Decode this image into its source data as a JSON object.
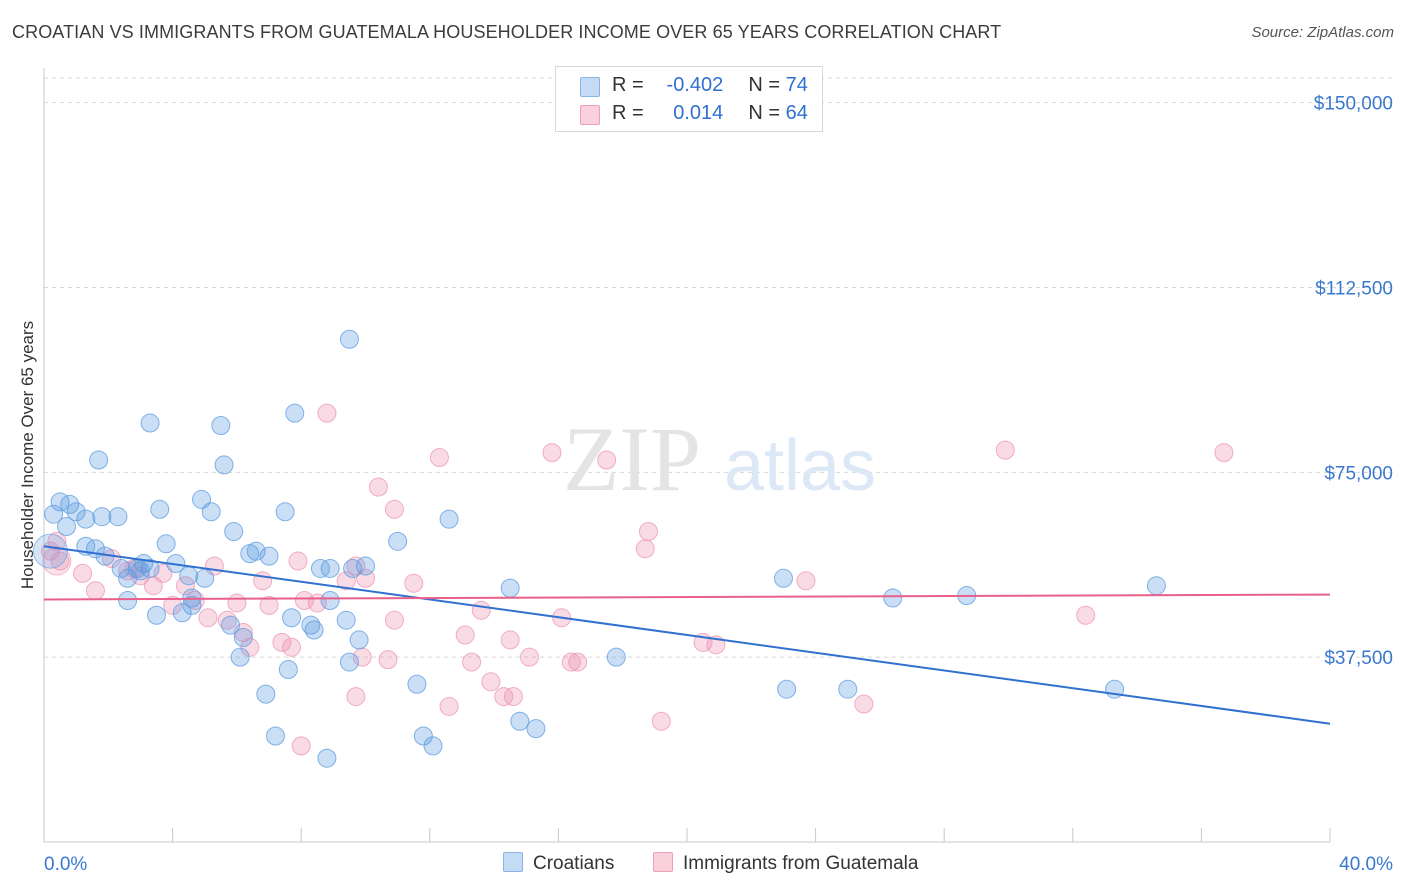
{
  "title": "CROATIAN VS IMMIGRANTS FROM GUATEMALA HOUSEHOLDER INCOME OVER 65 YEARS CORRELATION CHART",
  "source": "Source: ZipAtlas.com",
  "watermark": {
    "zip": "ZIP",
    "atlas": "atlas"
  },
  "legend": {
    "rows": [
      {
        "r_label": "R =",
        "r_value": "-0.402",
        "n_label": "N =",
        "n_value": "74",
        "color": "#a8c8f0"
      },
      {
        "r_label": "R =",
        "r_value": "0.014",
        "n_label": "N =",
        "n_value": "64",
        "color": "#f5b8cc"
      }
    ]
  },
  "bottom_legend": {
    "series1": "Croatians",
    "series2": "Immigrants from Guatemala"
  },
  "chart_data": {
    "type": "scatter",
    "title": "CROATIAN VS IMMIGRANTS FROM GUATEMALA HOUSEHOLDER INCOME OVER 65 YEARS CORRELATION CHART",
    "xlabel": "",
    "ylabel": "Householder Income Over 65 years",
    "xlim": [
      0,
      40
    ],
    "ylim": [
      0,
      155000
    ],
    "x_tick_labels": [
      "0.0%",
      "40.0%"
    ],
    "y_ticks": [
      37500,
      75000,
      112500,
      150000
    ],
    "y_tick_labels": [
      "$37,500",
      "$75,000",
      "$112,500",
      "$150,000"
    ],
    "grid": "horizontal dashed",
    "colors": {
      "croatians": "#5b9be0",
      "guatemala": "#ec8fb0",
      "croatians_line": "#3070d0",
      "guatemala_line": "#e8608a",
      "axis_text": "#3a78d0"
    },
    "series": [
      {
        "name": "Croatians",
        "trend": {
          "x": [
            0,
            40
          ],
          "y": [
            60000,
            24000
          ]
        },
        "points": [
          [
            0.3,
            66500
          ],
          [
            0.5,
            69000
          ],
          [
            0.8,
            68500
          ],
          [
            1.0,
            67000
          ],
          [
            0.7,
            64000
          ],
          [
            1.3,
            65500
          ],
          [
            1.8,
            66000
          ],
          [
            2.3,
            66000
          ],
          [
            1.7,
            77500
          ],
          [
            3.3,
            85000
          ],
          [
            5.5,
            84500
          ],
          [
            5.6,
            76500
          ],
          [
            7.8,
            87000
          ],
          [
            9.5,
            102000
          ],
          [
            1.6,
            59500
          ],
          [
            1.9,
            58000
          ],
          [
            2.4,
            55500
          ],
          [
            2.6,
            53500
          ],
          [
            2.9,
            55500
          ],
          [
            3.1,
            56500
          ],
          [
            3.3,
            55500
          ],
          [
            3.6,
            67500
          ],
          [
            3.8,
            60500
          ],
          [
            4.1,
            56500
          ],
          [
            4.5,
            54000
          ],
          [
            5.0,
            53500
          ],
          [
            4.9,
            69500
          ],
          [
            5.2,
            67000
          ],
          [
            5.9,
            63000
          ],
          [
            6.4,
            58500
          ],
          [
            6.6,
            59000
          ],
          [
            7.0,
            58000
          ],
          [
            7.5,
            67000
          ],
          [
            8.6,
            55500
          ],
          [
            8.9,
            55500
          ],
          [
            9.6,
            55500
          ],
          [
            11.0,
            61000
          ],
          [
            12.6,
            65500
          ],
          [
            3.5,
            46000
          ],
          [
            4.3,
            46500
          ],
          [
            4.6,
            49500
          ],
          [
            4.6,
            48000
          ],
          [
            5.8,
            44000
          ],
          [
            6.2,
            41500
          ],
          [
            6.1,
            37500
          ],
          [
            7.7,
            45500
          ],
          [
            8.3,
            44000
          ],
          [
            8.4,
            43000
          ],
          [
            8.9,
            49000
          ],
          [
            9.4,
            45000
          ],
          [
            9.8,
            41000
          ],
          [
            9.5,
            36500
          ],
          [
            7.6,
            35000
          ],
          [
            6.9,
            30000
          ],
          [
            7.2,
            21500
          ],
          [
            8.8,
            17000
          ],
          [
            11.6,
            32000
          ],
          [
            11.8,
            21500
          ],
          [
            12.1,
            19500
          ],
          [
            14.5,
            51500
          ],
          [
            14.8,
            24500
          ],
          [
            15.3,
            23000
          ],
          [
            17.8,
            37500
          ],
          [
            23.0,
            53500
          ],
          [
            23.1,
            31000
          ],
          [
            25.0,
            31000
          ],
          [
            26.4,
            49500
          ],
          [
            28.7,
            50000
          ],
          [
            33.3,
            31000
          ],
          [
            34.6,
            52000
          ],
          [
            1.3,
            60000
          ],
          [
            3.0,
            55000
          ],
          [
            2.6,
            49000
          ],
          [
            10.0,
            56000
          ]
        ]
      },
      {
        "name": "Immigrants from Guatemala",
        "trend": {
          "x": [
            0,
            40
          ],
          "y": [
            49200,
            50200
          ]
        },
        "points": [
          [
            0.2,
            59000
          ],
          [
            0.5,
            57000
          ],
          [
            0.4,
            61000
          ],
          [
            1.2,
            54500
          ],
          [
            1.6,
            51000
          ],
          [
            2.1,
            57500
          ],
          [
            2.6,
            55000
          ],
          [
            3.0,
            54000
          ],
          [
            3.4,
            52000
          ],
          [
            3.7,
            54500
          ],
          [
            4.0,
            48000
          ],
          [
            4.4,
            52000
          ],
          [
            4.7,
            49000
          ],
          [
            5.1,
            45500
          ],
          [
            5.3,
            56000
          ],
          [
            5.7,
            45000
          ],
          [
            6.0,
            48500
          ],
          [
            6.2,
            42500
          ],
          [
            6.4,
            39500
          ],
          [
            6.8,
            53000
          ],
          [
            7.0,
            48000
          ],
          [
            7.4,
            40500
          ],
          [
            7.7,
            39500
          ],
          [
            7.9,
            57000
          ],
          [
            8.1,
            49000
          ],
          [
            8.5,
            48500
          ],
          [
            8.8,
            87000
          ],
          [
            9.4,
            53000
          ],
          [
            9.7,
            56000
          ],
          [
            9.9,
            37500
          ],
          [
            10.4,
            72000
          ],
          [
            10.7,
            37000
          ],
          [
            10.9,
            67500
          ],
          [
            10.9,
            45000
          ],
          [
            11.5,
            52500
          ],
          [
            12.3,
            78000
          ],
          [
            12.6,
            27500
          ],
          [
            13.1,
            42000
          ],
          [
            13.3,
            36500
          ],
          [
            13.6,
            47000
          ],
          [
            13.9,
            32500
          ],
          [
            14.3,
            29500
          ],
          [
            14.6,
            29500
          ],
          [
            14.5,
            41000
          ],
          [
            15.1,
            37500
          ],
          [
            15.8,
            79000
          ],
          [
            16.1,
            45500
          ],
          [
            16.4,
            36500
          ],
          [
            16.6,
            36500
          ],
          [
            17.5,
            77500
          ],
          [
            18.7,
            59500
          ],
          [
            18.8,
            63000
          ],
          [
            19.2,
            24500
          ],
          [
            20.5,
            40500
          ],
          [
            20.9,
            40000
          ],
          [
            23.7,
            53000
          ],
          [
            25.5,
            28000
          ],
          [
            29.9,
            79500
          ],
          [
            32.4,
            46000
          ],
          [
            36.7,
            79000
          ],
          [
            9.7,
            29500
          ],
          [
            10.0,
            53500
          ],
          [
            8.0,
            19500
          ],
          [
            2.8,
            55500
          ]
        ]
      }
    ]
  }
}
